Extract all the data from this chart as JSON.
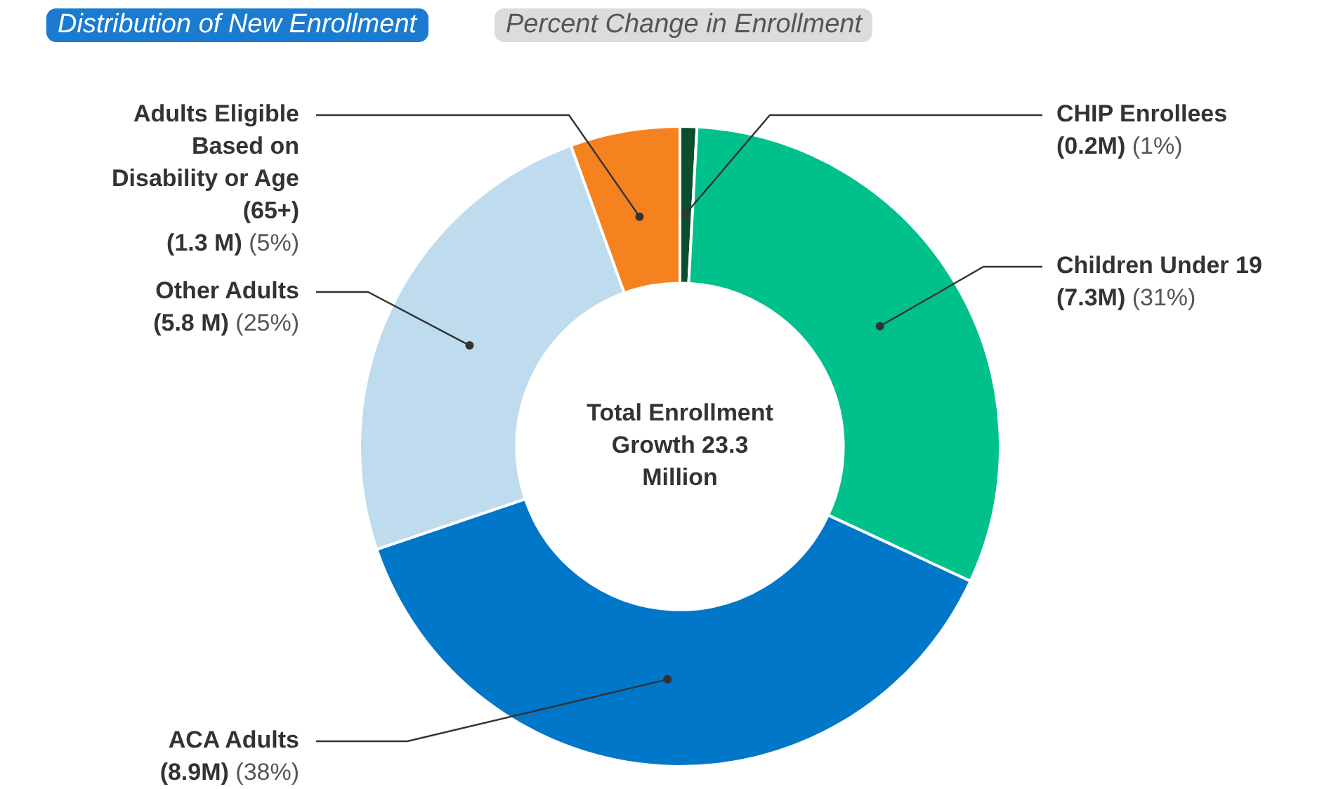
{
  "chart_data": {
    "type": "donut",
    "categories": [
      "CHIP Enrollees",
      "Children Under 19",
      "ACA Adults",
      "Other Adults",
      "Adults Eligible Based on Disability or Age (65+)"
    ],
    "values": [
      200000,
      7300000,
      8900000,
      5800000,
      1300000
    ],
    "value_labels": [
      "(0.2M) (1%)",
      "(7.3M) (31%)",
      "(8.9M) (38%)",
      "(5.8 M) (25%)",
      "(1.3 M) (5%)"
    ],
    "colors": [
      "#0b4d2c",
      "#00c08b",
      "#0077c8",
      "#bfdcef",
      "#f5821f"
    ],
    "annotations": [
      "Distribution of New Enrollment",
      "Percent Change in Enrollment",
      "Total Enrollment Growth 23.3 Million"
    ],
    "legend": false
  }
}
